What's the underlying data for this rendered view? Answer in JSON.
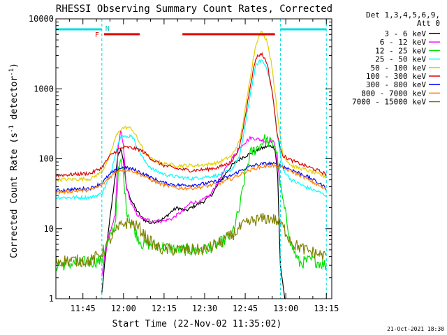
{
  "chart_data": {
    "type": "line",
    "title": "RHESSI Observing Summary Count Rates, Corrected",
    "xlabel": "Start Time (22-Nov-02 11:35:02)",
    "ylabel_main": "Corrected Count Rate (s",
    "ylabel_sup1": "-1",
    "ylabel_mid": " detector",
    "ylabel_sup2": "-1",
    "ylabel_end": ")",
    "x_scale": "time",
    "y_scale": "log",
    "xlim": [
      "11:35",
      "13:17"
    ],
    "ylim": [
      1,
      10000
    ],
    "x_ticks": [
      "11:45",
      "12:00",
      "12:15",
      "12:30",
      "12:45",
      "13:00",
      "13:15"
    ],
    "y_ticks": [
      {
        "v": 1,
        "label": "1"
      },
      {
        "v": 10,
        "label": "10"
      },
      {
        "v": 100,
        "label": "100"
      },
      {
        "v": 1000,
        "label": "1000"
      },
      {
        "v": 10000,
        "label": "10000"
      }
    ],
    "legend_header": [
      "Det 1,3,4,5,6,9,",
      "Att 0"
    ],
    "legend_position": "right",
    "timestamp": "21-Oct-2021 18:30",
    "annotations": {
      "night_label": "N",
      "flare_label": "F",
      "night": [
        [
          "11:35",
          "11:52"
        ],
        [
          "12:58",
          "13:15"
        ]
      ],
      "flare": [
        [
          "11:52",
          "12:06"
        ],
        [
          "12:21",
          "12:56"
        ]
      ],
      "dashed_lines": [
        "11:35",
        "11:52",
        "12:58",
        "13:15"
      ]
    },
    "series": [
      {
        "name": "3 - 6 keV",
        "color": "#000000",
        "points": [
          [
            "11:52",
            1.2
          ],
          [
            "11:53",
            3
          ],
          [
            "11:55",
            14
          ],
          [
            "11:57",
            60
          ],
          [
            "11:58",
            110
          ],
          [
            "11:59",
            140
          ],
          [
            "12:00",
            95
          ],
          [
            "12:01",
            40
          ],
          [
            "12:03",
            25
          ],
          [
            "12:05",
            18
          ],
          [
            "12:07",
            14
          ],
          [
            "12:10",
            12
          ],
          [
            "12:15",
            14
          ],
          [
            "12:18",
            18
          ],
          [
            "12:20",
            20
          ],
          [
            "12:23",
            18
          ],
          [
            "12:27",
            22
          ],
          [
            "12:30",
            25
          ],
          [
            "12:33",
            32
          ],
          [
            "12:36",
            50
          ],
          [
            "12:40",
            80
          ],
          [
            "12:44",
            105
          ],
          [
            "12:48",
            125
          ],
          [
            "12:51",
            140
          ],
          [
            "12:53",
            150
          ],
          [
            "12:55",
            150
          ],
          [
            "12:56",
            140
          ],
          [
            "12:57",
            60
          ],
          [
            "12:57.5",
            12
          ],
          [
            "12:58",
            3
          ],
          [
            "13:00",
            0.8
          ]
        ]
      },
      {
        "name": "6 - 12 keV",
        "color": "#ff00ff",
        "points": [
          [
            "11:52",
            2
          ],
          [
            "11:53",
            4
          ],
          [
            "11:55",
            9
          ],
          [
            "11:57",
            16
          ],
          [
            "11:58",
            140
          ],
          [
            "11:59",
            260
          ],
          [
            "12:00",
            150
          ],
          [
            "12:01",
            40
          ],
          [
            "12:03",
            22
          ],
          [
            "12:05",
            16
          ],
          [
            "12:07",
            14
          ],
          [
            "12:10",
            13
          ],
          [
            "12:15",
            13
          ],
          [
            "12:18",
            14
          ],
          [
            "12:20",
            16
          ],
          [
            "12:22",
            18
          ],
          [
            "12:25",
            24
          ],
          [
            "12:28",
            24
          ],
          [
            "12:32",
            30
          ],
          [
            "12:36",
            55
          ],
          [
            "12:40",
            100
          ],
          [
            "12:44",
            160
          ],
          [
            "12:47",
            200
          ],
          [
            "12:50",
            190
          ],
          [
            "12:53",
            175
          ],
          [
            "12:55",
            180
          ],
          [
            "12:56",
            160
          ],
          [
            "12:57",
            80
          ],
          [
            "12:58",
            40
          ]
        ]
      },
      {
        "name": "12 - 25 keV",
        "color": "#00e000",
        "points": [
          [
            "11:35",
            3
          ],
          [
            "11:52",
            3.5
          ],
          [
            "11:53",
            5
          ],
          [
            "11:55",
            7
          ],
          [
            "11:57",
            12
          ],
          [
            "11:58",
            60
          ],
          [
            "11:59",
            90
          ],
          [
            "12:00",
            60
          ],
          [
            "12:01",
            20
          ],
          [
            "12:03",
            12
          ],
          [
            "12:05",
            8
          ],
          [
            "12:07",
            6
          ],
          [
            "12:10",
            6
          ],
          [
            "12:15",
            5.5
          ],
          [
            "12:20",
            5
          ],
          [
            "12:25",
            5
          ],
          [
            "12:30",
            5
          ],
          [
            "12:35",
            6
          ],
          [
            "12:40",
            8
          ],
          [
            "12:43",
            20
          ],
          [
            "12:45",
            60
          ],
          [
            "12:47",
            120
          ],
          [
            "12:50",
            150
          ],
          [
            "12:52",
            190
          ],
          [
            "12:54",
            170
          ],
          [
            "12:56",
            160
          ],
          [
            "12:57",
            100
          ],
          [
            "12:58",
            40
          ],
          [
            "13:00",
            15
          ],
          [
            "13:02",
            6
          ],
          [
            "13:05",
            3.2
          ],
          [
            "13:10",
            3.6
          ],
          [
            "13:15",
            3
          ]
        ]
      },
      {
        "name": "25 - 50 keV",
        "color": "#00ffff",
        "points": [
          [
            "11:35",
            28
          ],
          [
            "11:48",
            28
          ],
          [
            "11:52",
            32
          ],
          [
            "11:55",
            55
          ],
          [
            "11:57",
            120
          ],
          [
            "11:59",
            220
          ],
          [
            "12:01",
            200
          ],
          [
            "12:03",
            220
          ],
          [
            "12:05",
            150
          ],
          [
            "12:08",
            90
          ],
          [
            "12:11",
            70
          ],
          [
            "12:15",
            60
          ],
          [
            "12:20",
            55
          ],
          [
            "12:25",
            52
          ],
          [
            "12:30",
            55
          ],
          [
            "12:35",
            58
          ],
          [
            "12:40",
            70
          ],
          [
            "12:43",
            110
          ],
          [
            "12:45",
            300
          ],
          [
            "12:47",
            900
          ],
          [
            "12:49",
            2200
          ],
          [
            "12:51",
            2600
          ],
          [
            "12:53",
            2000
          ],
          [
            "12:55",
            900
          ],
          [
            "12:57",
            200
          ],
          [
            "12:59",
            70
          ],
          [
            "13:02",
            50
          ],
          [
            "13:07",
            40
          ],
          [
            "13:11",
            35
          ],
          [
            "13:15",
            30
          ]
        ]
      },
      {
        "name": "50 - 100 keV",
        "color": "#e0d000",
        "points": [
          [
            "11:35",
            50
          ],
          [
            "11:48",
            52
          ],
          [
            "11:52",
            65
          ],
          [
            "11:55",
            110
          ],
          [
            "11:57",
            200
          ],
          [
            "11:59",
            270
          ],
          [
            "12:01",
            280
          ],
          [
            "12:03",
            270
          ],
          [
            "12:05",
            200
          ],
          [
            "12:08",
            120
          ],
          [
            "12:11",
            95
          ],
          [
            "12:15",
            85
          ],
          [
            "12:20",
            80
          ],
          [
            "12:25",
            80
          ],
          [
            "12:30",
            82
          ],
          [
            "12:35",
            88
          ],
          [
            "12:40",
            110
          ],
          [
            "12:43",
            180
          ],
          [
            "12:45",
            500
          ],
          [
            "12:47",
            1600
          ],
          [
            "12:49",
            4500
          ],
          [
            "12:51",
            6500
          ],
          [
            "12:53",
            5000
          ],
          [
            "12:55",
            2000
          ],
          [
            "12:57",
            400
          ],
          [
            "12:59",
            110
          ],
          [
            "13:02",
            80
          ],
          [
            "13:07",
            70
          ],
          [
            "13:11",
            62
          ],
          [
            "13:15",
            55
          ]
        ]
      },
      {
        "name": "100 - 300 keV",
        "color": "#e00000",
        "points": [
          [
            "11:35",
            58
          ],
          [
            "11:48",
            62
          ],
          [
            "11:52",
            75
          ],
          [
            "11:55",
            110
          ],
          [
            "11:58",
            135
          ],
          [
            "12:00",
            145
          ],
          [
            "12:02",
            145
          ],
          [
            "12:04",
            140
          ],
          [
            "12:06",
            135
          ],
          [
            "12:08",
            120
          ],
          [
            "12:11",
            95
          ],
          [
            "12:15",
            80
          ],
          [
            "12:20",
            72
          ],
          [
            "12:25",
            68
          ],
          [
            "12:30",
            70
          ],
          [
            "12:35",
            75
          ],
          [
            "12:40",
            90
          ],
          [
            "12:43",
            150
          ],
          [
            "12:45",
            400
          ],
          [
            "12:47",
            1200
          ],
          [
            "12:49",
            2800
          ],
          [
            "12:51",
            3200
          ],
          [
            "12:53",
            2400
          ],
          [
            "12:55",
            900
          ],
          [
            "12:57",
            200
          ],
          [
            "12:59",
            110
          ],
          [
            "13:02",
            95
          ],
          [
            "13:07",
            80
          ],
          [
            "13:11",
            70
          ],
          [
            "13:15",
            60
          ]
        ]
      },
      {
        "name": "300 - 800 keV",
        "color": "#0000ff",
        "points": [
          [
            "11:35",
            35
          ],
          [
            "11:48",
            38
          ],
          [
            "11:52",
            45
          ],
          [
            "11:55",
            60
          ],
          [
            "11:58",
            72
          ],
          [
            "12:00",
            75
          ],
          [
            "12:03",
            72
          ],
          [
            "12:07",
            62
          ],
          [
            "12:11",
            52
          ],
          [
            "12:15",
            45
          ],
          [
            "12:20",
            42
          ],
          [
            "12:25",
            42
          ],
          [
            "12:30",
            44
          ],
          [
            "12:35",
            48
          ],
          [
            "12:40",
            58
          ],
          [
            "12:44",
            70
          ],
          [
            "12:48",
            80
          ],
          [
            "12:52",
            85
          ],
          [
            "12:55",
            85
          ],
          [
            "12:58",
            80
          ],
          [
            "13:02",
            70
          ],
          [
            "13:07",
            58
          ],
          [
            "13:11",
            48
          ],
          [
            "13:15",
            38
          ]
        ]
      },
      {
        "name": "800 - 7000 keV",
        "color": "#ff8000",
        "points": [
          [
            "11:35",
            33
          ],
          [
            "11:48",
            36
          ],
          [
            "11:52",
            42
          ],
          [
            "11:55",
            55
          ],
          [
            "11:58",
            68
          ],
          [
            "12:00",
            70
          ],
          [
            "12:03",
            68
          ],
          [
            "12:07",
            58
          ],
          [
            "12:11",
            48
          ],
          [
            "12:15",
            42
          ],
          [
            "12:20",
            38
          ],
          [
            "12:25",
            38
          ],
          [
            "12:30",
            40
          ],
          [
            "12:35",
            44
          ],
          [
            "12:40",
            52
          ],
          [
            "12:44",
            62
          ],
          [
            "12:48",
            72
          ],
          [
            "12:52",
            78
          ],
          [
            "12:55",
            80
          ],
          [
            "12:58",
            76
          ],
          [
            "13:02",
            66
          ],
          [
            "13:07",
            54
          ],
          [
            "13:11",
            44
          ],
          [
            "13:15",
            36
          ]
        ]
      },
      {
        "name": "7000 - 15000 keV",
        "color": "#808000",
        "points": [
          [
            "11:35",
            3.5
          ],
          [
            "11:48",
            3.5
          ],
          [
            "11:52",
            4.5
          ],
          [
            "11:55",
            7
          ],
          [
            "11:58",
            10
          ],
          [
            "12:00",
            12
          ],
          [
            "12:03",
            12
          ],
          [
            "12:06",
            10
          ],
          [
            "12:09",
            7
          ],
          [
            "12:12",
            5.5
          ],
          [
            "12:15",
            5
          ],
          [
            "12:20",
            5
          ],
          [
            "12:25",
            5
          ],
          [
            "12:30",
            5
          ],
          [
            "12:35",
            6
          ],
          [
            "12:40",
            8
          ],
          [
            "12:44",
            11
          ],
          [
            "12:48",
            13
          ],
          [
            "12:52",
            14
          ],
          [
            "12:55",
            14
          ],
          [
            "12:58",
            12
          ],
          [
            "13:00",
            9
          ],
          [
            "13:03",
            6
          ],
          [
            "13:07",
            5
          ],
          [
            "13:11",
            4.5
          ],
          [
            "13:15",
            4
          ]
        ]
      }
    ]
  }
}
